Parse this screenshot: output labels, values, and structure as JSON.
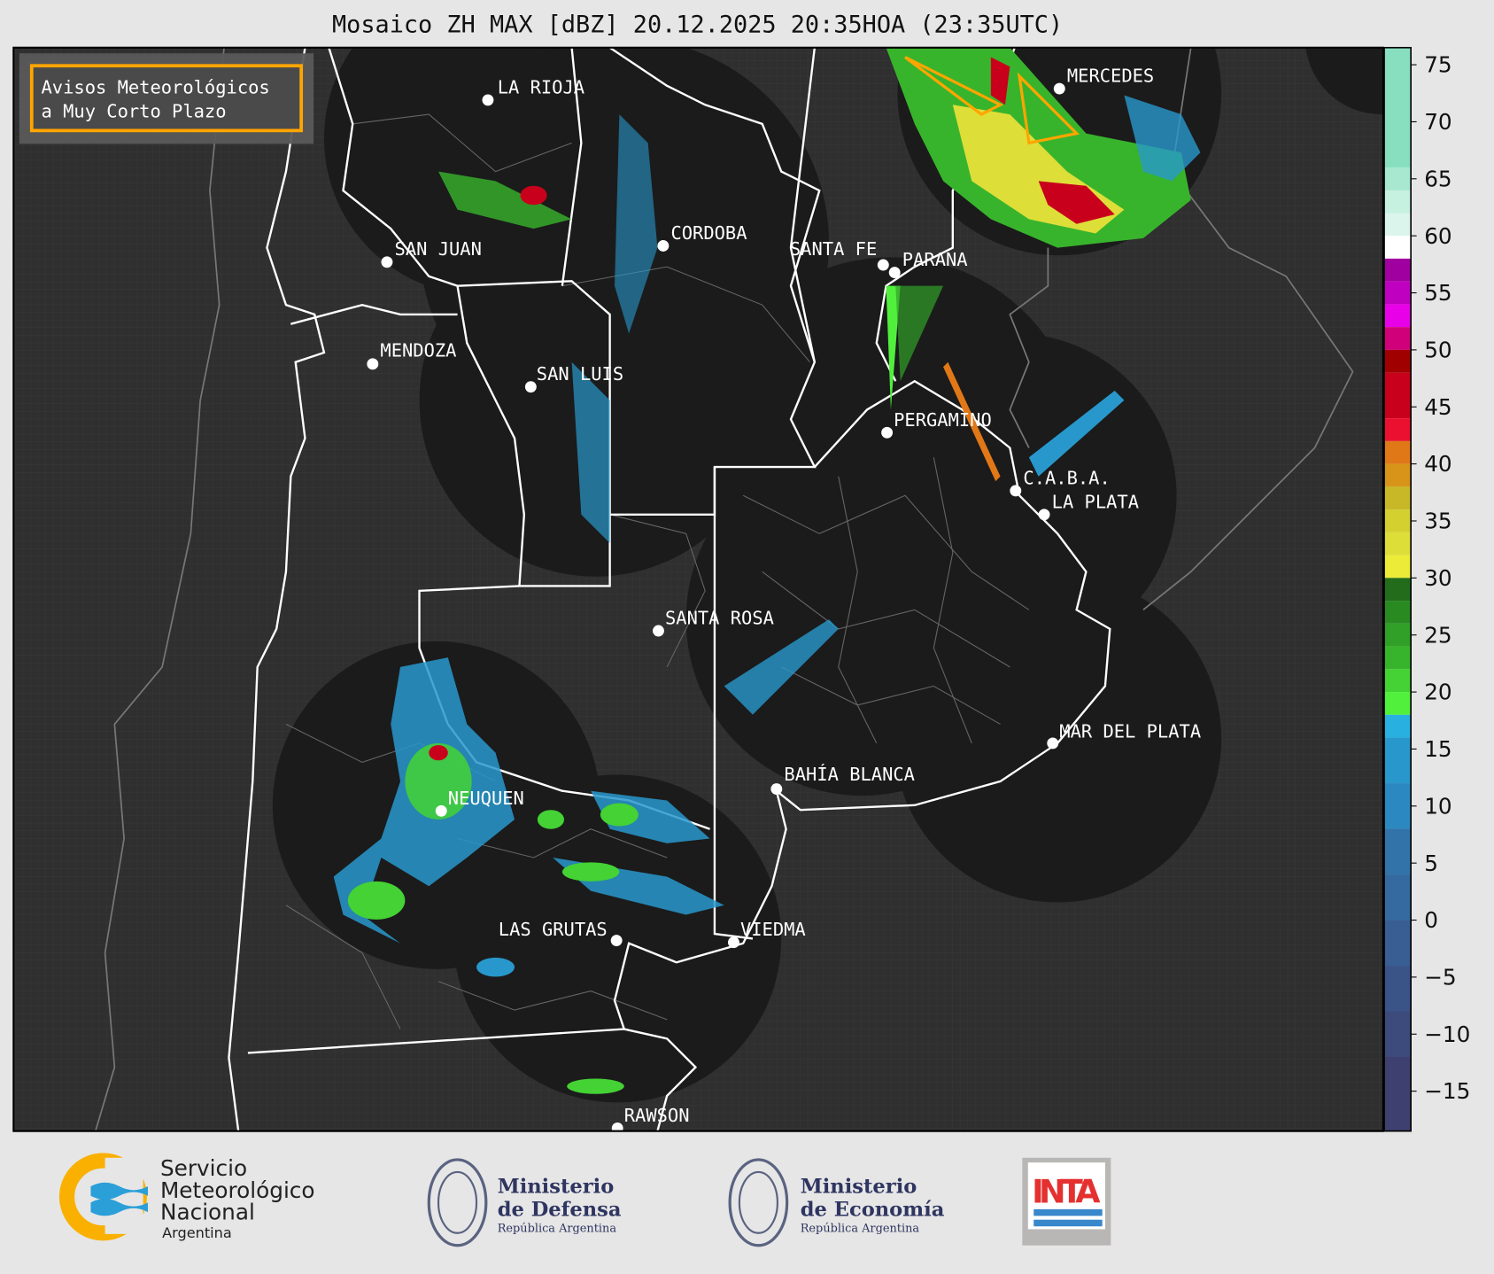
{
  "title": "Mosaico ZH MAX [dBZ] 20.12.2025 20:35HOA (23:35UTC)",
  "alert_box": {
    "line1": "Avisos Meteorológicos",
    "line2": "a Muy Corto Plazo",
    "border_color": "#ffa500"
  },
  "cities": [
    {
      "name": "LA RIOJA"
    },
    {
      "name": "CORDOBA"
    },
    {
      "name": "SAN JUAN"
    },
    {
      "name": "SANTA FE"
    },
    {
      "name": "PARANA"
    },
    {
      "name": "MENDOZA"
    },
    {
      "name": "SAN LUIS"
    },
    {
      "name": "MERCEDES"
    },
    {
      "name": "PERGAMINO"
    },
    {
      "name": "C.A.B.A."
    },
    {
      "name": "LA PLATA"
    },
    {
      "name": "SANTA ROSA"
    },
    {
      "name": "MAR DEL PLATA"
    },
    {
      "name": "BAHÍA BLANCA"
    },
    {
      "name": "NEUQUEN"
    },
    {
      "name": "LAS GRUTAS"
    },
    {
      "name": "VIEDMA"
    },
    {
      "name": "RAWSON"
    }
  ],
  "colorbar": {
    "unit": "dBZ",
    "range": [
      -18.5,
      76.5
    ],
    "ticks": [
      "75",
      "70",
      "65",
      "60",
      "55",
      "50",
      "45",
      "40",
      "35",
      "30",
      "25",
      "20",
      "15",
      "10",
      "5",
      "0",
      "−5",
      "−10",
      "−15"
    ],
    "bands": [
      {
        "from": 60.5,
        "to": 76.5,
        "color": "#88dfc0"
      },
      {
        "from": 64,
        "to": 66,
        "color": "#a8e8d0"
      },
      {
        "from": 62,
        "to": 64,
        "color": "#c6f0e0"
      },
      {
        "from": 60,
        "to": 62,
        "color": "#dcf5ec"
      },
      {
        "from": 58,
        "to": 60,
        "color": "#ffffff"
      },
      {
        "from": 56,
        "to": 58,
        "color": "#a000a0"
      },
      {
        "from": 54,
        "to": 56,
        "color": "#c000c0"
      },
      {
        "from": 52,
        "to": 54,
        "color": "#e800e8"
      },
      {
        "from": 50,
        "to": 52,
        "color": "#d0007a"
      },
      {
        "from": 48,
        "to": 50,
        "color": "#a00000"
      },
      {
        "from": 44,
        "to": 48,
        "color": "#c8001c"
      },
      {
        "from": 42,
        "to": 44,
        "color": "#ec1030"
      },
      {
        "from": 40,
        "to": 42,
        "color": "#e07818"
      },
      {
        "from": 38,
        "to": 40,
        "color": "#d89418"
      },
      {
        "from": 36,
        "to": 38,
        "color": "#c8b828"
      },
      {
        "from": 34,
        "to": 36,
        "color": "#d4d030"
      },
      {
        "from": 32,
        "to": 34,
        "color": "#dede38"
      },
      {
        "from": 30,
        "to": 32,
        "color": "#ecec38"
      },
      {
        "from": 28,
        "to": 30,
        "color": "#226c1c"
      },
      {
        "from": 26,
        "to": 28,
        "color": "#2a8a22"
      },
      {
        "from": 24,
        "to": 26,
        "color": "#30a028"
      },
      {
        "from": 22,
        "to": 24,
        "color": "#38b42c"
      },
      {
        "from": 20,
        "to": 22,
        "color": "#44d234"
      },
      {
        "from": 18,
        "to": 20,
        "color": "#50f03c"
      },
      {
        "from": 16,
        "to": 18,
        "color": "#28b0e0"
      },
      {
        "from": 12,
        "to": 16,
        "color": "#2898cc"
      },
      {
        "from": 8,
        "to": 12,
        "color": "#2c88c0"
      },
      {
        "from": 4,
        "to": 8,
        "color": "#3274aa"
      },
      {
        "from": 0,
        "to": 4,
        "color": "#346aa0"
      },
      {
        "from": -4,
        "to": 0,
        "color": "#385e94"
      },
      {
        "from": -8,
        "to": -4,
        "color": "#3a5488"
      },
      {
        "from": -12,
        "to": -8,
        "color": "#3c4a7c"
      },
      {
        "from": -18.5,
        "to": -12,
        "color": "#3e4070"
      }
    ]
  },
  "logos": {
    "smn": {
      "line1": "Servicio",
      "line2": "Meteorológico",
      "line3": "Nacional",
      "line4": "Argentina"
    },
    "defensa": {
      "line1": "Ministerio",
      "line2": "de Defensa",
      "line3": "República Argentina"
    },
    "economia": {
      "line1": "Ministerio",
      "line2": "de Economía",
      "line3": "República Argentina"
    },
    "inta": {
      "text": "INTA"
    }
  }
}
